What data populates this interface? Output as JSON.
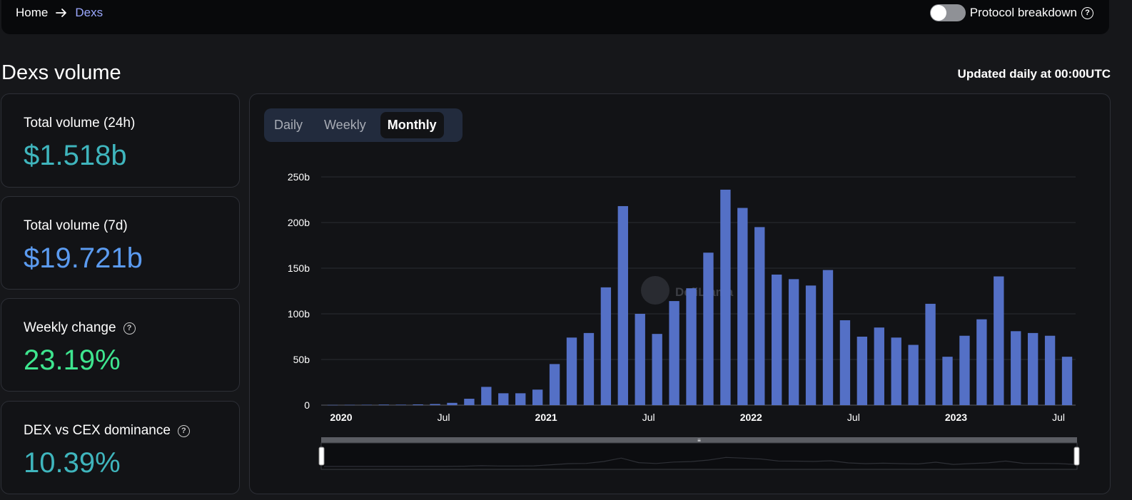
{
  "breadcrumb": {
    "home": "Home",
    "current": "Dexs"
  },
  "protocol_toggle": {
    "label": "Protocol breakdown",
    "checked": false
  },
  "page": {
    "title": "Dexs volume",
    "updated": "Updated daily at 00:00UTC"
  },
  "stats": [
    {
      "label": "Total volume (24h)",
      "value": "$1.518b",
      "color": "#3fb5bd",
      "help": false
    },
    {
      "label": "Total volume (7d)",
      "value": "$19.721b",
      "color": "#5b9bf0",
      "help": false
    },
    {
      "label": "Weekly change",
      "value": "23.19%",
      "color": "#3ee58f",
      "help": true
    },
    {
      "label": "DEX vs CEX dominance",
      "value": "10.39%",
      "color": "#3fb5bd",
      "help": true
    }
  ],
  "tabs": [
    "Daily",
    "Weekly",
    "Monthly"
  ],
  "active_tab": "Monthly",
  "watermark": "DefiLlama",
  "colors": {
    "bar": "#5470c6",
    "accent": "#9ba8ff",
    "grid": "#2a2c33"
  },
  "chart_data": {
    "type": "bar",
    "title": "",
    "xlabel": "",
    "ylabel": "",
    "ylim": [
      0,
      250
    ],
    "y_ticks": [
      "0",
      "50b",
      "100b",
      "150b",
      "200b",
      "250b"
    ],
    "x_tick_labels": [
      {
        "label": "2020",
        "month_index": 0,
        "bold": true
      },
      {
        "label": "Jul",
        "month_index": 6,
        "bold": false
      },
      {
        "label": "2021",
        "month_index": 12,
        "bold": true
      },
      {
        "label": "Jul",
        "month_index": 18,
        "bold": false
      },
      {
        "label": "2022",
        "month_index": 24,
        "bold": true
      },
      {
        "label": "Jul",
        "month_index": 30,
        "bold": false
      },
      {
        "label": "2023",
        "month_index": 36,
        "bold": true
      },
      {
        "label": "Jul",
        "month_index": 42,
        "bold": false
      }
    ],
    "categories": [
      "2019-12",
      "2020-01",
      "2020-02",
      "2020-03",
      "2020-04",
      "2020-05",
      "2020-06",
      "2020-07",
      "2020-08",
      "2020-09",
      "2020-10",
      "2020-11",
      "2020-12",
      "2021-01",
      "2021-02",
      "2021-03",
      "2021-04",
      "2021-05",
      "2021-06",
      "2021-07",
      "2021-08",
      "2021-09",
      "2021-10",
      "2021-11",
      "2021-12",
      "2022-01",
      "2022-02",
      "2022-03",
      "2022-04",
      "2022-05",
      "2022-06",
      "2022-07",
      "2022-08",
      "2022-09",
      "2022-10",
      "2022-11",
      "2022-12",
      "2023-01",
      "2023-02",
      "2023-03",
      "2023-04",
      "2023-05",
      "2023-06",
      "2023-07"
    ],
    "values": [
      0.2,
      0.3,
      0.4,
      0.6,
      0.5,
      0.8,
      1.2,
      2.5,
      7,
      20,
      13,
      13,
      17,
      45,
      74,
      79,
      129,
      218,
      100,
      78,
      114,
      128,
      167,
      236,
      216,
      195,
      143,
      138,
      131,
      148,
      93,
      75,
      85,
      74,
      66,
      111,
      53,
      76,
      94,
      141,
      81,
      79,
      76,
      53
    ]
  }
}
